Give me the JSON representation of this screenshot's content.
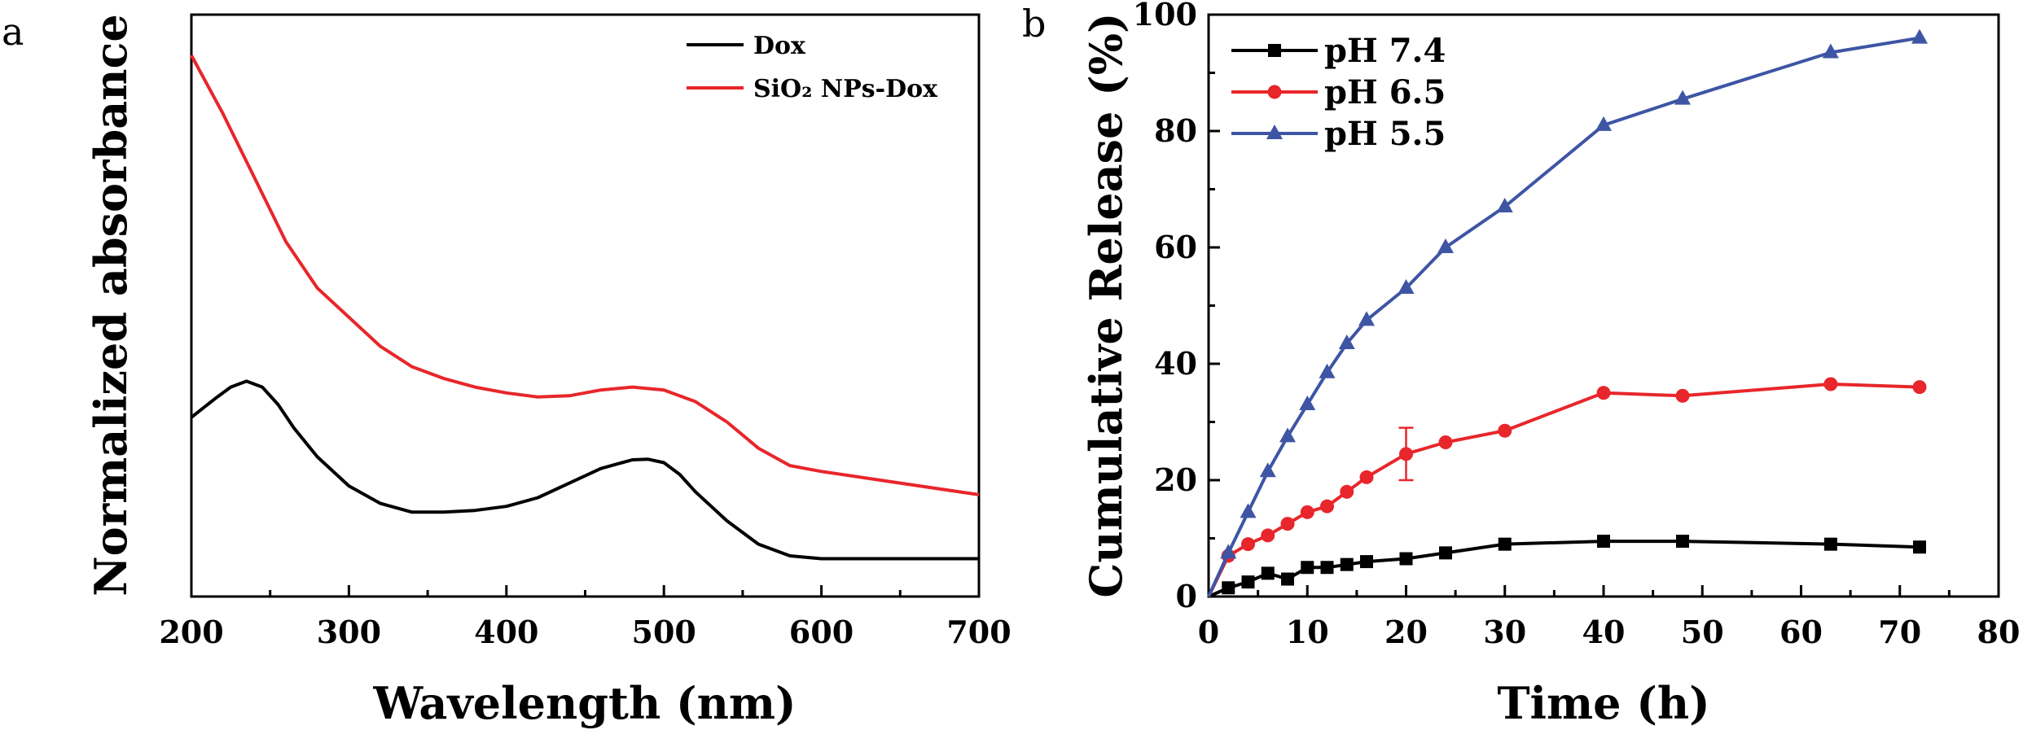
{
  "figure": {
    "panels": [
      "a",
      "b"
    ]
  },
  "colors": {
    "black": "#000000",
    "red": "#e8262b",
    "blue": "#3e55a4"
  },
  "chart_data": [
    {
      "type": "line",
      "panel_label": "a",
      "title": "",
      "xlabel": "Wavelength (nm)",
      "ylabel": "Normalized absorbance",
      "xlim": [
        200,
        700
      ],
      "ylim": [
        0,
        1
      ],
      "xticks": [
        200,
        300,
        400,
        500,
        600,
        700
      ],
      "yticks": [],
      "legend_placement": "top-right",
      "series": [
        {
          "name": "Dox",
          "color": "#000000",
          "x": [
            200,
            215,
            225,
            235,
            245,
            255,
            265,
            280,
            300,
            320,
            340,
            360,
            380,
            400,
            420,
            440,
            460,
            480,
            490,
            500,
            510,
            520,
            540,
            560,
            580,
            600,
            650,
            700
          ],
          "y": [
            0.308,
            0.34,
            0.36,
            0.37,
            0.36,
            0.33,
            0.29,
            0.24,
            0.19,
            0.16,
            0.145,
            0.145,
            0.148,
            0.155,
            0.17,
            0.195,
            0.22,
            0.235,
            0.236,
            0.23,
            0.21,
            0.18,
            0.13,
            0.09,
            0.07,
            0.065,
            0.065,
            0.065
          ]
        },
        {
          "name": "SiO₂ NPs-Dox",
          "color": "#e8262b",
          "x": [
            200,
            220,
            240,
            260,
            280,
            300,
            320,
            340,
            360,
            380,
            400,
            420,
            440,
            460,
            480,
            500,
            520,
            540,
            560,
            580,
            600,
            650,
            700
          ],
          "y": [
            0.93,
            0.83,
            0.72,
            0.61,
            0.53,
            0.48,
            0.43,
            0.395,
            0.375,
            0.36,
            0.35,
            0.343,
            0.345,
            0.355,
            0.36,
            0.355,
            0.335,
            0.3,
            0.255,
            0.225,
            0.215,
            0.195,
            0.175
          ]
        }
      ]
    },
    {
      "type": "line",
      "panel_label": "b",
      "title": "",
      "xlabel": "Time (h)",
      "ylabel": "Cumulative Release (%)",
      "xlim": [
        0,
        80
      ],
      "ylim": [
        0,
        100
      ],
      "xticks": [
        0,
        10,
        20,
        30,
        40,
        50,
        60,
        70,
        80
      ],
      "yticks": [
        0,
        20,
        40,
        60,
        80,
        100
      ],
      "legend_placement": "top-left",
      "series": [
        {
          "name": "pH 7.4",
          "color": "#000000",
          "marker": "square",
          "x": [
            0,
            2,
            4,
            6,
            8,
            10,
            12,
            14,
            16,
            20,
            24,
            30,
            40,
            48,
            63,
            72
          ],
          "y": [
            0,
            1.5,
            2.5,
            4,
            3,
            5,
            5,
            5.5,
            6,
            6.5,
            7.5,
            9,
            9.5,
            9.5,
            9,
            8.5
          ]
        },
        {
          "name": "pH 6.5",
          "color": "#e8262b",
          "marker": "circle",
          "x": [
            0,
            2,
            4,
            6,
            8,
            10,
            12,
            14,
            16,
            20,
            24,
            30,
            40,
            48,
            63,
            72
          ],
          "y": [
            0,
            7,
            9,
            10.5,
            12.5,
            14.5,
            15.5,
            18,
            20.5,
            24.5,
            26.5,
            28.5,
            35,
            34.5,
            36.5,
            36
          ],
          "error": [
            0,
            0,
            0,
            0,
            0,
            0,
            0,
            0,
            0,
            4.5,
            0,
            0,
            0,
            0,
            0,
            0
          ]
        },
        {
          "name": "pH 5.5",
          "color": "#3e55a4",
          "marker": "triangle",
          "x": [
            0,
            2,
            4,
            6,
            8,
            10,
            12,
            14,
            16,
            20,
            24,
            30,
            40,
            48,
            63,
            72
          ],
          "y": [
            0,
            7.5,
            14.5,
            21.5,
            27.5,
            33,
            38.5,
            43.5,
            47.5,
            53,
            60,
            67,
            81,
            85.5,
            93.5,
            96
          ]
        }
      ]
    }
  ]
}
